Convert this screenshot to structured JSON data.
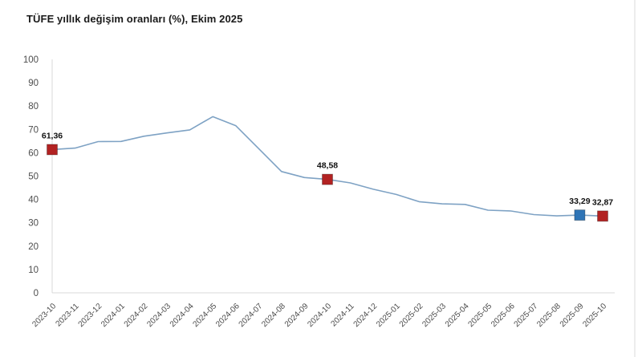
{
  "chart_data": {
    "type": "line",
    "title": "TÜFE yıllık değişim oranları (%), Ekim 2025",
    "x": [
      "2023-10",
      "2023-11",
      "2023-12",
      "2024-01",
      "2024-02",
      "2024-03",
      "2024-04",
      "2024-05",
      "2024-06",
      "2024-07",
      "2024-08",
      "2024-09",
      "2024-10",
      "2024-11",
      "2024-12",
      "2025-01",
      "2025-02",
      "2025-03",
      "2025-04",
      "2025-05",
      "2025-06",
      "2025-07",
      "2025-08",
      "2025-09",
      "2025-10"
    ],
    "values": [
      61.36,
      61.98,
      64.77,
      64.86,
      67.07,
      68.5,
      69.8,
      75.45,
      71.6,
      61.78,
      51.97,
      49.38,
      48.58,
      47.09,
      44.38,
      42.12,
      39.05,
      38.1,
      37.86,
      35.41,
      35.05,
      33.52,
      32.95,
      33.29,
      32.87
    ],
    "ylim": [
      0,
      100
    ],
    "yticks": [
      0,
      10,
      20,
      30,
      40,
      50,
      60,
      70,
      80,
      90,
      100
    ],
    "grid": false,
    "legend": "none",
    "line_color": "#7EA2C4",
    "axis_color": "#d9d9d9",
    "tick_label_color": "#4d4d4d",
    "data_label_color": "#111111",
    "highlights": [
      {
        "index": 0,
        "category": "2023-10",
        "value": 61.36,
        "label": "61,36",
        "color": "#B22222"
      },
      {
        "index": 12,
        "category": "2024-10",
        "value": 48.58,
        "label": "48,58",
        "color": "#B22222"
      },
      {
        "index": 23,
        "category": "2025-09",
        "value": 33.29,
        "label": "33,29",
        "color": "#2E74B6"
      },
      {
        "index": 24,
        "category": "2025-10",
        "value": 32.87,
        "label": "32,87",
        "color": "#B22222"
      }
    ]
  }
}
